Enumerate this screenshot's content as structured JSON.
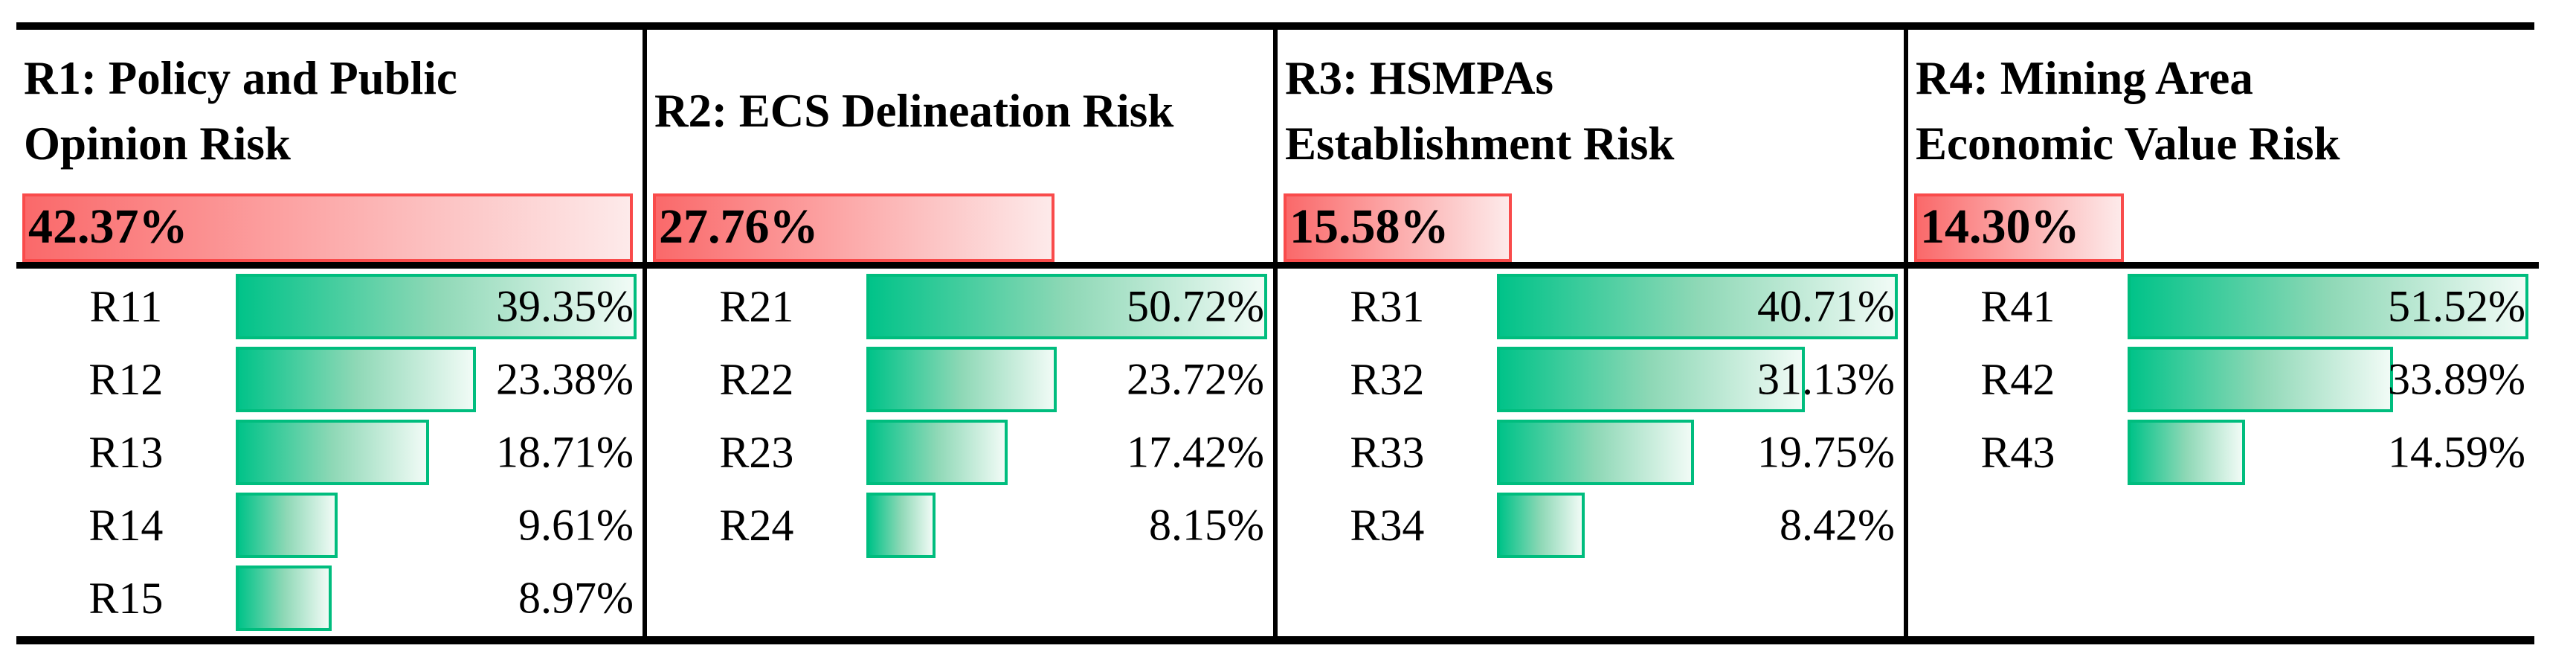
{
  "chart_data": {
    "type": "bar",
    "title": "",
    "layout": "four-column risk weight table; each column: bold title, red group-weight bar (scaled to max group 42.37%), black separator, green sub-risk bars (each scaled to its group's max item)",
    "grid": false,
    "colors": {
      "group_bar_border": "#f94b4b",
      "group_bar_gradient": [
        "#fa696a",
        "#fcabab",
        "#fdeaea"
      ],
      "item_bar_border": "#00bd7e",
      "item_bar_gradient": [
        "#01c389",
        "#8ed8b6",
        "#f1fbf6"
      ],
      "rule_color": "#000000",
      "text_color": "#000000",
      "background": "#ffffff"
    },
    "groups": [
      {
        "id": "R1",
        "label": "R1: Policy and Public Opinion Risk",
        "label_lines": [
          "R1: Policy and Public",
          "Opinion Risk"
        ],
        "value": 42.37,
        "value_label": "42.37%",
        "items": [
          {
            "label": "R11",
            "value": 39.35,
            "value_label": "39.35%"
          },
          {
            "label": "R12",
            "value": 23.38,
            "value_label": "23.38%"
          },
          {
            "label": "R13",
            "value": 18.71,
            "value_label": "18.71%"
          },
          {
            "label": "R14",
            "value": 9.61,
            "value_label": "9.61%"
          },
          {
            "label": "R15",
            "value": 8.97,
            "value_label": "8.97%"
          }
        ]
      },
      {
        "id": "R2",
        "label": "R2: ECS Delineation Risk",
        "label_lines": [
          "R2: ECS Delineation Risk"
        ],
        "value": 27.76,
        "value_label": "27.76%",
        "items": [
          {
            "label": "R21",
            "value": 50.72,
            "value_label": "50.72%"
          },
          {
            "label": "R22",
            "value": 23.72,
            "value_label": "23.72%"
          },
          {
            "label": "R23",
            "value": 17.42,
            "value_label": "17.42%"
          },
          {
            "label": "R24",
            "value": 8.15,
            "value_label": "8.15%"
          }
        ]
      },
      {
        "id": "R3",
        "label": "R3: HSMPAs Establishment Risk",
        "label_lines": [
          "R3: HSMPAs",
          "Establishment Risk"
        ],
        "value": 15.58,
        "value_label": "15.58%",
        "items": [
          {
            "label": "R31",
            "value": 40.71,
            "value_label": "40.71%"
          },
          {
            "label": "R32",
            "value": 31.13,
            "value_label": "31.13%"
          },
          {
            "label": "R33",
            "value": 19.75,
            "value_label": "19.75%"
          },
          {
            "label": "R34",
            "value": 8.42,
            "value_label": "8.42%"
          }
        ]
      },
      {
        "id": "R4",
        "label": "R4: Mining Area Economic Value Risk",
        "label_lines": [
          "R4: Mining Area",
          "Economic Value Risk"
        ],
        "value": 14.3,
        "value_label": "14.30%",
        "items": [
          {
            "label": "R41",
            "value": 51.52,
            "value_label": "51.52%"
          },
          {
            "label": "R42",
            "value": 33.89,
            "value_label": "33.89%"
          },
          {
            "label": "R43",
            "value": 14.59,
            "value_label": "14.59%"
          }
        ]
      }
    ]
  }
}
